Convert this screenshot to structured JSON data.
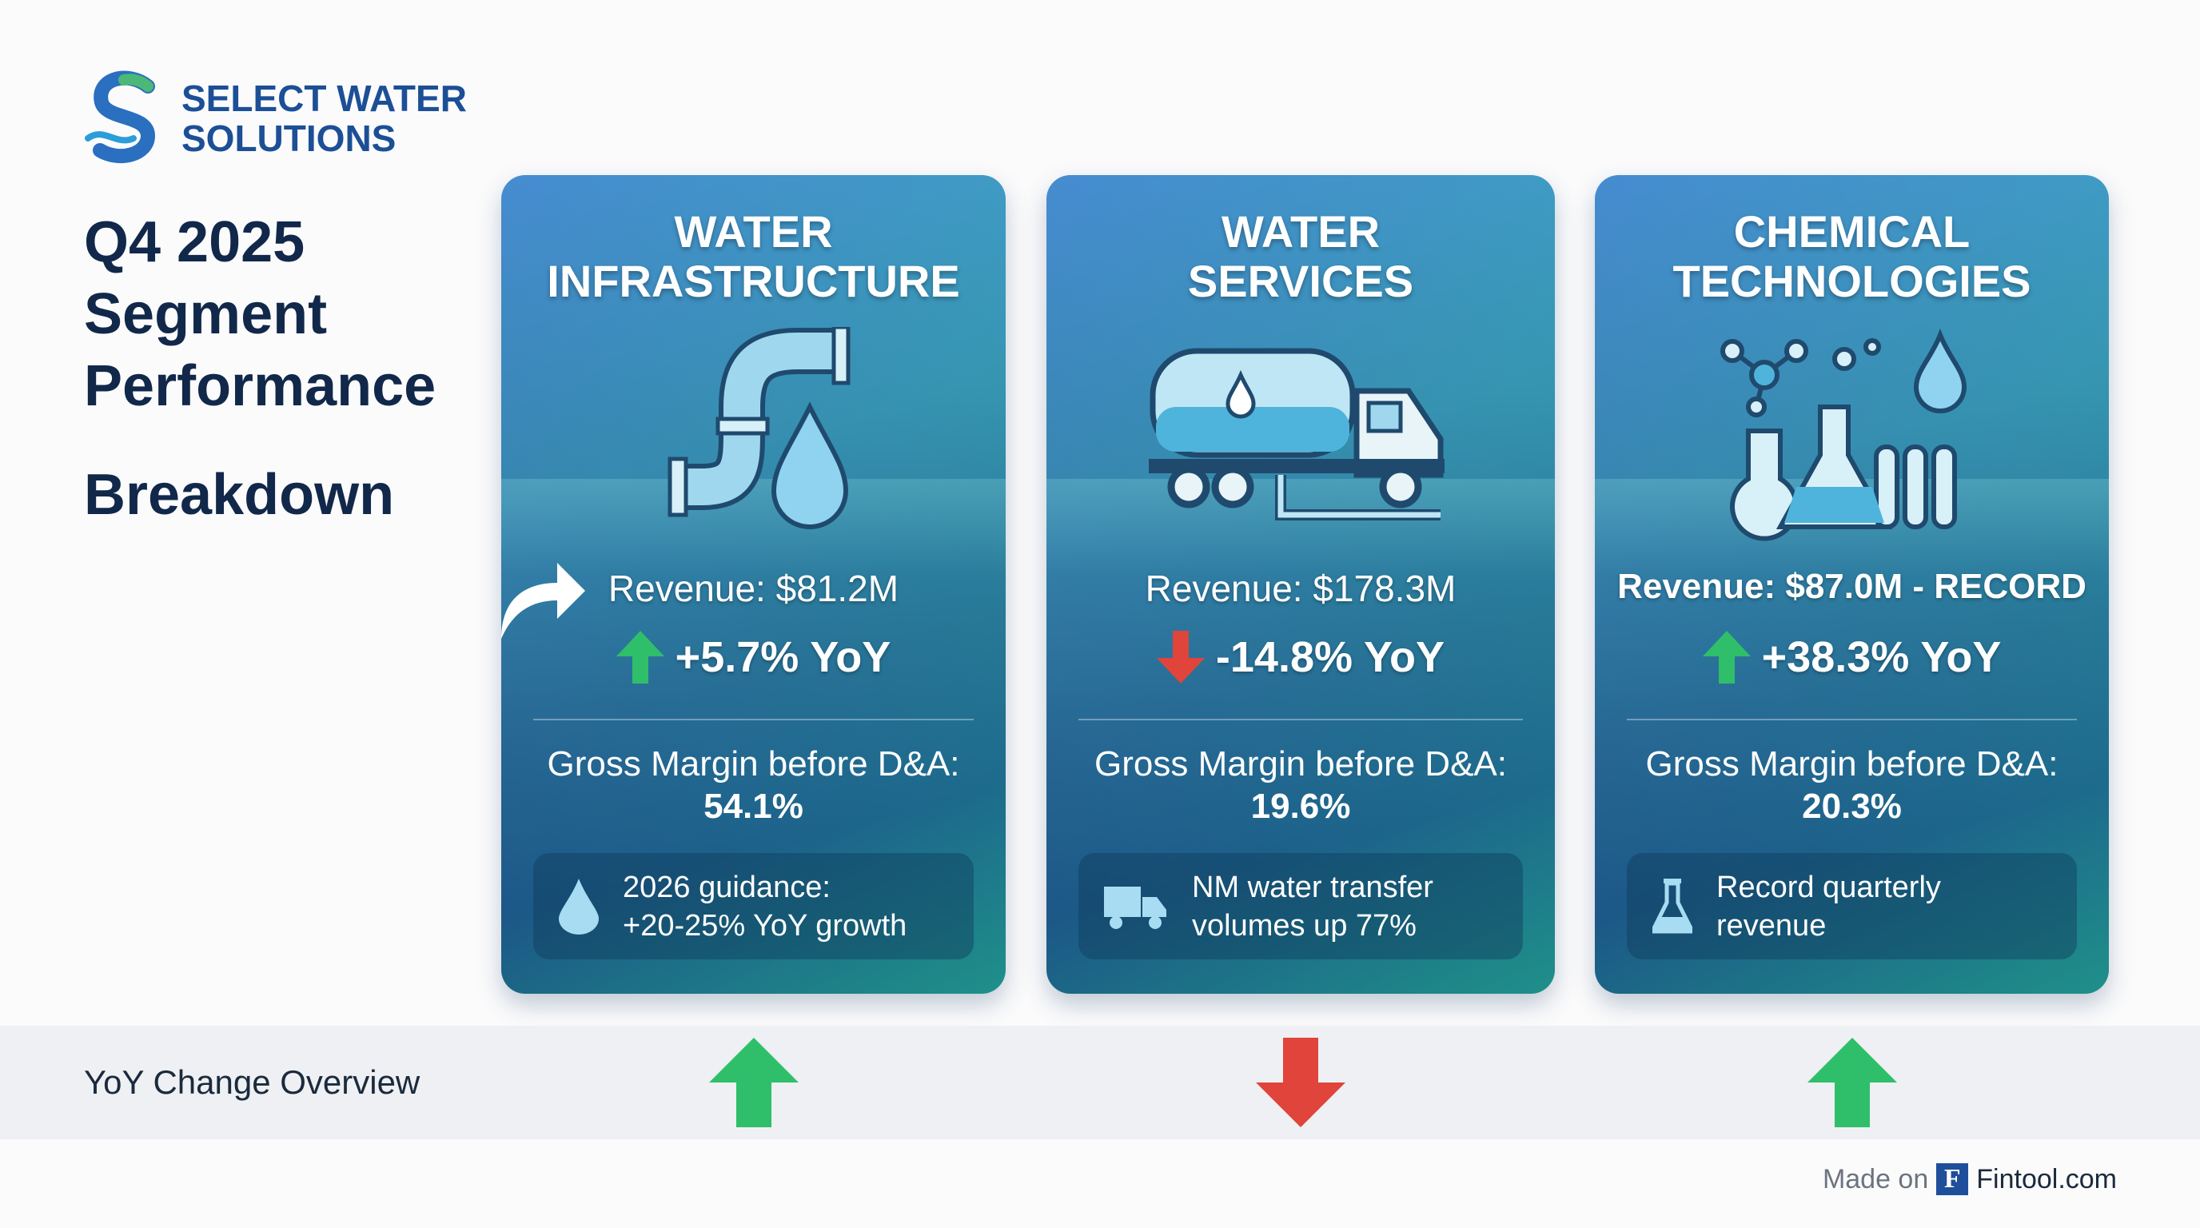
{
  "brand": {
    "line1": "SELECT WATER",
    "line2": "SOLUTIONS"
  },
  "title": {
    "line1": "Q4 2025",
    "line2": "Segment",
    "line3": "Performance",
    "line4": "Breakdown"
  },
  "segments": [
    {
      "title1": "WATER",
      "title2": "INFRASTRUCTURE",
      "revenue": "Revenue: $81.2M",
      "yoy": "+5.7% YoY",
      "direction": "up",
      "gm_label": "Gross Margin before D&A:",
      "gm_value": "54.1%",
      "note1": "2026 guidance:",
      "note2": "+20-25% YoY growth",
      "note_icon": "water-drop-icon"
    },
    {
      "title1": "WATER",
      "title2": "SERVICES",
      "revenue": "Revenue: $178.3M",
      "yoy": "-14.8% YoY",
      "direction": "down",
      "gm_label": "Gross Margin before D&A:",
      "gm_value": "19.6%",
      "note1": "NM water transfer",
      "note2": "volumes up 77%",
      "note_icon": "truck-icon"
    },
    {
      "title1": "CHEMICAL",
      "title2": "TECHNOLOGIES",
      "revenue": "Revenue: $87.0M - RECORD",
      "yoy": "+38.3% YoY",
      "direction": "up",
      "gm_label": "Gross Margin before D&A:",
      "gm_value": "20.3%",
      "note1": "Record quarterly",
      "note2": "revenue",
      "note_icon": "flask-icon"
    }
  ],
  "overview": {
    "label": "YoY Change Overview"
  },
  "footer": {
    "made_on": "Made on",
    "logo_letter": "F",
    "brand": "Fintool.com"
  },
  "colors": {
    "up": "#2fbf6a",
    "down": "#e0443a",
    "brand": "#1c4f96"
  }
}
